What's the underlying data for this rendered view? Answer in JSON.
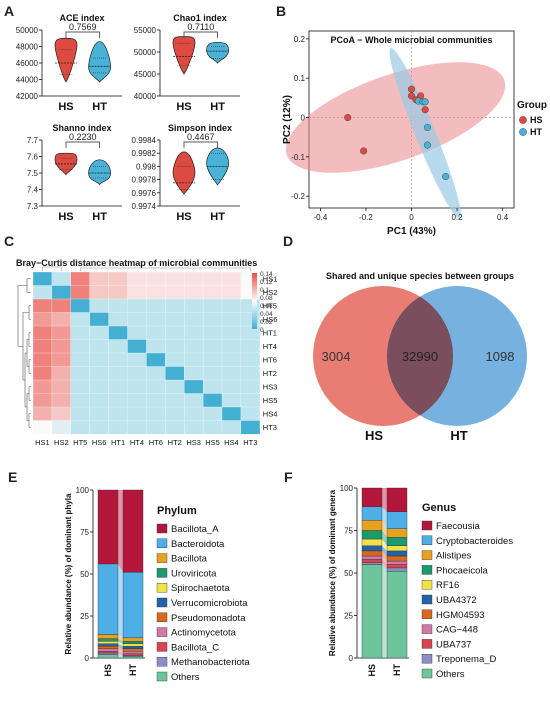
{
  "panels": {
    "A": "A",
    "B": "B",
    "C": "C",
    "D": "D",
    "E": "E",
    "F": "F"
  },
  "colors": {
    "hs": "#dd4a42",
    "ht": "#49b2d6",
    "hs_light": "#e9868a",
    "ht_light": "#98cce6"
  },
  "violins": {
    "groups": [
      "HS",
      "HT"
    ],
    "items": [
      {
        "title": "ACE index",
        "p": "0.7569",
        "ylim": [
          42000,
          50000
        ],
        "ticks": [
          42000,
          44000,
          46000,
          48000,
          50000
        ],
        "HS": {
          "min": 43700,
          "max": 49000,
          "q1": 44600,
          "median": 46000,
          "q3": 47600,
          "peak": 48200
        },
        "HT": {
          "min": 43700,
          "max": 48600,
          "q1": 44800,
          "median": 45600,
          "q3": 46600,
          "peak": 45500
        }
      },
      {
        "title": "Chao1 index",
        "p": "0.7110",
        "ylim": [
          40000,
          55000
        ],
        "ticks": [
          40000,
          45000,
          50000,
          55000
        ],
        "HS": {
          "min": 45000,
          "max": 53500,
          "q1": 47000,
          "median": 49000,
          "q3": 52000,
          "peak": 52200
        },
        "HT": {
          "min": 47500,
          "max": 52200,
          "q1": 48500,
          "median": 50200,
          "q3": 51200,
          "peak": 50500
        }
      },
      {
        "title": "Shanno index",
        "p": "0.2230",
        "ylim": [
          7.3,
          7.7
        ],
        "ticks": [
          7.3,
          7.4,
          7.5,
          7.6,
          7.7
        ],
        "HS": {
          "min": 7.49,
          "max": 7.62,
          "q1": 7.52,
          "median": 7.555,
          "q3": 7.59,
          "peak": 7.585
        },
        "HT": {
          "min": 7.43,
          "max": 7.58,
          "q1": 7.47,
          "median": 7.5,
          "q3": 7.54,
          "peak": 7.5
        }
      },
      {
        "title": "Simpson index",
        "p": "0.4467",
        "ylim": [
          0.9974,
          0.9984
        ],
        "ticks": [
          0.9974,
          0.9976,
          0.9978,
          0.998,
          0.9982,
          0.9984
        ],
        "HS": {
          "min": 0.99758,
          "max": 0.99822,
          "q1": 0.99765,
          "median": 0.99775,
          "q3": 0.998,
          "peak": 0.9979
        },
        "HT": {
          "min": 0.99772,
          "max": 0.99828,
          "q1": 0.9978,
          "median": 0.998,
          "q3": 0.9982,
          "peak": 0.99805
        }
      }
    ]
  },
  "chart_data": [
    {
      "type": "scatter",
      "title": "PCoA − Whole microbial communities",
      "xlabel": "PC1 (43%)",
      "ylabel": "PC2 (12%)",
      "xlim": [
        -0.45,
        0.45
      ],
      "ylim": [
        -0.23,
        0.22
      ],
      "xticks": [
        -0.4,
        -0.2,
        0.0,
        0.2,
        0.4
      ],
      "yticks": [
        -0.2,
        -0.1,
        0.0,
        0.1,
        0.2
      ],
      "legend_title": "Group",
      "series": [
        {
          "name": "HS",
          "points": [
            [
              -0.28,
              0.0
            ],
            [
              -0.21,
              -0.085
            ],
            [
              0.0,
              0.072
            ],
            [
              0.0,
              0.055
            ],
            [
              0.04,
              0.055
            ],
            [
              0.02,
              0.045
            ],
            [
              0.06,
              0.02
            ]
          ]
        },
        {
          "name": "HT",
          "points": [
            [
              0.03,
              0.042
            ],
            [
              0.05,
              0.04
            ],
            [
              0.06,
              0.04
            ],
            [
              0.07,
              -0.025
            ],
            [
              0.07,
              -0.07
            ],
            [
              0.15,
              -0.15
            ]
          ]
        }
      ]
    },
    {
      "type": "heatmap",
      "title": "Bray−Curtis distance heatmap of microbial communities",
      "rows": [
        "HS1",
        "HS2",
        "HT5",
        "HS6",
        "HT1",
        "HT4",
        "HT6",
        "HT2",
        "HS3",
        "HS5",
        "HS4",
        "HT3"
      ],
      "cols": [
        "HS1",
        "HS2",
        "HT5",
        "HS6",
        "HT1",
        "HT4",
        "HT6",
        "HT2",
        "HS3",
        "HS5",
        "HS4",
        "HT3"
      ],
      "scale_ticks": [
        "0.14",
        "0.12",
        "0.1",
        "0.08",
        "0.06",
        "0.04",
        "0.02",
        "0"
      ],
      "scale_range": [
        0,
        0.14
      ],
      "values": [
        [
          0,
          0.02,
          0.12,
          0.09,
          0.09,
          0.08,
          0.08,
          0.08,
          0.08,
          0.08,
          0.08,
          0.07
        ],
        [
          0.02,
          0,
          0.12,
          0.09,
          0.09,
          0.08,
          0.08,
          0.08,
          0.08,
          0.08,
          0.08,
          0.07
        ],
        [
          0.12,
          0.12,
          0,
          0.02,
          0.02,
          0.02,
          0.02,
          0.02,
          0.02,
          0.02,
          0.02,
          0.02
        ],
        [
          0.11,
          0.1,
          0.02,
          0,
          0.02,
          0.02,
          0.02,
          0.02,
          0.02,
          0.02,
          0.02,
          0.02
        ],
        [
          0.12,
          0.11,
          0.02,
          0.02,
          0,
          0.02,
          0.02,
          0.02,
          0.02,
          0.02,
          0.02,
          0.02
        ],
        [
          0.12,
          0.11,
          0.02,
          0.02,
          0.02,
          0,
          0.02,
          0.02,
          0.02,
          0.02,
          0.02,
          0.02
        ],
        [
          0.12,
          0.11,
          0.02,
          0.02,
          0.02,
          0.02,
          0,
          0.02,
          0.02,
          0.02,
          0.02,
          0.02
        ],
        [
          0.12,
          0.1,
          0.02,
          0.02,
          0.02,
          0.02,
          0.02,
          0,
          0.02,
          0.02,
          0.02,
          0.02
        ],
        [
          0.11,
          0.1,
          0.02,
          0.02,
          0.02,
          0.02,
          0.02,
          0.02,
          0,
          0.02,
          0.02,
          0.02
        ],
        [
          0.11,
          0.1,
          0.02,
          0.02,
          0.02,
          0.02,
          0.02,
          0.02,
          0.02,
          0,
          0.02,
          0.02
        ],
        [
          0.1,
          0.09,
          0.02,
          0.02,
          0.02,
          0.02,
          0.02,
          0.02,
          0.02,
          0.02,
          0,
          0.02
        ],
        [
          0.07,
          0.06,
          0.02,
          0.02,
          0.02,
          0.02,
          0.02,
          0.02,
          0.02,
          0.02,
          0.02,
          0
        ]
      ]
    },
    {
      "type": "venn",
      "title": "Shared and unique species between groups",
      "sets": [
        {
          "name": "HS",
          "unique": "3004"
        },
        {
          "name": "HT",
          "unique": "1098"
        }
      ],
      "shared": "32990"
    },
    {
      "type": "bar",
      "stacked": true,
      "ylabel": "Relative abundance (%) of dominant phyla",
      "legend_title": "Phylum",
      "categories": [
        "HS",
        "HT"
      ],
      "ylim": [
        0,
        100
      ],
      "yticks": [
        0,
        25,
        50,
        75,
        100
      ],
      "series": [
        {
          "name": "Bacillota_A",
          "color": "#b3163b",
          "values": [
            44,
            49
          ]
        },
        {
          "name": "Bacteroidota",
          "color": "#4eaee6",
          "values": [
            42,
            39
          ]
        },
        {
          "name": "Bacillota",
          "color": "#e7a222",
          "values": [
            2.5,
            2
          ]
        },
        {
          "name": "Uroviricota",
          "color": "#1b9a6c",
          "values": [
            1.5,
            1.5
          ]
        },
        {
          "name": "Spirochaetota",
          "color": "#f2e24a",
          "values": [
            1.5,
            1.5
          ]
        },
        {
          "name": "Verrucomicrobiota",
          "color": "#2462a8",
          "values": [
            1.5,
            1.5
          ]
        },
        {
          "name": "Pseudomonadota",
          "color": "#d9681c",
          "values": [
            1.5,
            1.5
          ]
        },
        {
          "name": "Actinomycetota",
          "color": "#d078a6",
          "values": [
            1.5,
            1.5
          ]
        },
        {
          "name": "Bacillota_C",
          "color": "#d8454f",
          "values": [
            1,
            1
          ]
        },
        {
          "name": "Methanobacteriota",
          "color": "#8a8fc7",
          "values": [
            1,
            0.5
          ]
        },
        {
          "name": "Others",
          "color": "#6cc59c",
          "values": [
            2,
            1
          ]
        }
      ]
    },
    {
      "type": "bar",
      "stacked": true,
      "ylabel": "Relative abundance (%) of dominant genera",
      "legend_title": "Genus",
      "categories": [
        "HS",
        "HT"
      ],
      "ylim": [
        0,
        100
      ],
      "yticks": [
        0,
        25,
        50,
        75,
        100
      ],
      "series": [
        {
          "name": "Faecousia",
          "color": "#b3163b",
          "values": [
            11,
            14
          ]
        },
        {
          "name": "Cryptobacteroides",
          "color": "#4eaee6",
          "values": [
            8,
            10
          ]
        },
        {
          "name": "Alistipes",
          "color": "#e7a222",
          "values": [
            6,
            5
          ]
        },
        {
          "name": "Phocaeicola",
          "color": "#1b9a6c",
          "values": [
            5,
            5
          ]
        },
        {
          "name": "RF16",
          "color": "#f2e24a",
          "values": [
            4,
            3
          ]
        },
        {
          "name": "UBA4372",
          "color": "#2462a8",
          "values": [
            3,
            3
          ]
        },
        {
          "name": "HGM04593",
          "color": "#d9681c",
          "values": [
            3,
            3
          ]
        },
        {
          "name": "CAG−448",
          "color": "#d078a6",
          "values": [
            2,
            2
          ]
        },
        {
          "name": "UBA737",
          "color": "#d8454f",
          "values": [
            2,
            2
          ]
        },
        {
          "name": "Treponema_D",
          "color": "#8a8fc7",
          "values": [
            1,
            2
          ]
        },
        {
          "name": "Others",
          "color": "#6cc59c",
          "values": [
            55,
            51
          ]
        }
      ]
    }
  ]
}
